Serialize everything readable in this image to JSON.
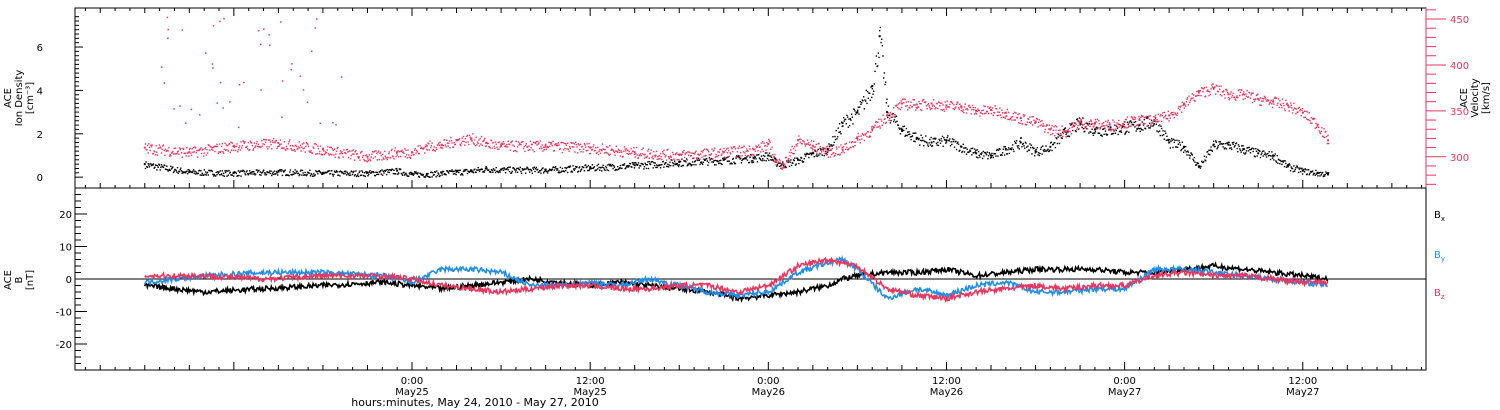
{
  "chart_data": [
    {
      "panel": "top",
      "type": "scatter",
      "left_axis": {
        "label_lines": [
          "ACE",
          "Ion Density",
          "[cm⁻³]"
        ],
        "ylim": [
          -0.5,
          7.8
        ],
        "ticks": [
          0,
          2,
          4,
          6
        ],
        "tick_labels": [
          "0",
          "2",
          "4",
          "6"
        ]
      },
      "right_axis": {
        "label_lines": [
          "ACE",
          "Velocity",
          "[km/s]"
        ],
        "ylim": [
          266,
          462
        ],
        "ticks": [
          300,
          350,
          400,
          450
        ],
        "tick_labels": [
          "300",
          "350",
          "400",
          "450"
        ],
        "color": "#e8365e"
      },
      "series": [
        {
          "axis": "left",
          "color": "#000000",
          "x": [
            -18,
            -15,
            -12,
            -9,
            -6,
            -3,
            -1,
            0,
            1,
            2,
            3,
            4,
            5,
            6,
            9,
            12,
            15,
            18,
            21,
            23,
            24,
            24.5,
            25,
            26,
            27,
            28,
            29,
            30,
            31,
            31.5,
            32,
            33,
            34,
            35,
            36,
            37,
            38,
            39,
            40,
            41,
            42,
            43,
            44,
            45,
            46,
            47,
            48,
            49,
            50,
            51,
            52,
            53,
            54,
            55,
            56,
            57,
            58,
            59,
            60,
            61,
            61.7
          ],
          "values": [
            0.6,
            0.25,
            0.2,
            0.25,
            0.2,
            0.2,
            0.3,
            0.15,
            0.15,
            0.2,
            0.25,
            0.3,
            0.4,
            0.35,
            0.35,
            0.45,
            0.55,
            0.7,
            0.8,
            0.9,
            1.0,
            0.7,
            0.6,
            0.8,
            1.1,
            1.3,
            2.5,
            3.0,
            4.2,
            6.5,
            3.0,
            2.2,
            1.8,
            1.6,
            1.7,
            1.4,
            1.1,
            1.0,
            1.3,
            1.6,
            1.2,
            1.4,
            2.1,
            2.5,
            2.2,
            2.2,
            2.3,
            2.4,
            2.6,
            1.6,
            1.4,
            0.5,
            1.5,
            1.5,
            1.3,
            1.1,
            1.0,
            0.5,
            0.3,
            0.2,
            0.15
          ]
        },
        {
          "axis": "right",
          "color": "#e8365e",
          "x": [
            -18,
            -15,
            -12,
            -9,
            -6,
            -3,
            -1,
            0,
            1,
            2,
            3,
            4,
            5,
            6,
            9,
            12,
            15,
            18,
            21,
            23,
            24,
            24.5,
            25,
            26,
            27,
            28,
            29,
            30,
            31,
            32,
            33,
            34,
            35,
            36,
            37,
            38,
            39,
            40,
            41,
            42,
            43,
            44,
            45,
            46,
            47,
            48,
            49,
            50,
            51,
            52,
            53,
            54,
            55,
            56,
            57,
            58,
            59,
            60,
            61,
            61.7
          ],
          "values": [
            310,
            305,
            312,
            315,
            308,
            300,
            305,
            305,
            312,
            313,
            318,
            320,
            315,
            312,
            312,
            310,
            305,
            302,
            305,
            308,
            314,
            295,
            292,
            318,
            312,
            306,
            308,
            320,
            330,
            345,
            358,
            357,
            358,
            356,
            355,
            350,
            351,
            348,
            342,
            338,
            330,
            328,
            338,
            336,
            335,
            338,
            340,
            340,
            345,
            358,
            370,
            375,
            368,
            368,
            363,
            360,
            356,
            348,
            335,
            318
          ]
        }
      ]
    },
    {
      "panel": "bottom",
      "type": "line",
      "y_axis": {
        "label_lines": [
          "ACE",
          "B",
          "[nT]"
        ],
        "ylim": [
          -28,
          28
        ],
        "ticks": [
          -20,
          -10,
          0,
          10,
          20
        ],
        "tick_labels": [
          "-20",
          "-10",
          "0",
          "10",
          "20"
        ]
      },
      "series": [
        {
          "name_main": "B",
          "name_sub": "x",
          "color": "#000000",
          "x": [
            -18,
            -14,
            -10,
            -6,
            -2,
            0,
            2,
            4,
            6,
            8,
            10,
            12,
            14,
            16,
            18,
            20,
            22,
            24,
            26,
            28,
            29,
            30,
            32,
            34,
            36,
            38,
            40,
            42,
            44,
            46,
            48,
            50,
            52,
            54,
            56,
            58,
            60,
            61.7
          ],
          "values": [
            -2,
            -4,
            -3,
            -2,
            -1,
            -2,
            -3,
            -2,
            -1,
            0,
            -1,
            -2,
            -1,
            -2,
            -3,
            -4,
            -6,
            -5,
            -4,
            -2,
            0,
            1,
            2,
            2,
            3,
            1,
            2,
            3,
            3,
            3,
            2,
            2,
            3,
            4,
            3,
            2,
            1,
            0
          ]
        },
        {
          "name_main": "B",
          "name_sub": "y",
          "color": "#1f8fe8",
          "x": [
            -18,
            -14,
            -10,
            -6,
            -2,
            0,
            2,
            4,
            6,
            8,
            10,
            12,
            14,
            16,
            18,
            20,
            22,
            24,
            26,
            28,
            29,
            30,
            32,
            34,
            36,
            38,
            40,
            42,
            44,
            46,
            48,
            50,
            52,
            54,
            56,
            58,
            60,
            61.7
          ],
          "values": [
            -1,
            1,
            2,
            2,
            1,
            -1,
            3,
            3,
            2,
            -2,
            -2,
            -1,
            -2,
            0,
            -2,
            -4,
            -5,
            -4,
            2,
            5,
            6,
            3,
            -6,
            -3,
            -5,
            -2,
            -1,
            -4,
            -4,
            -3,
            -3,
            3,
            3,
            2,
            1,
            0,
            -1,
            -2
          ]
        },
        {
          "name_main": "B",
          "name_sub": "z",
          "color": "#e8365e",
          "x": [
            -18,
            -14,
            -10,
            -6,
            -2,
            0,
            2,
            4,
            6,
            8,
            10,
            12,
            14,
            16,
            18,
            20,
            22,
            24,
            26,
            28,
            29,
            30,
            32,
            34,
            36,
            38,
            40,
            42,
            44,
            46,
            48,
            50,
            52,
            54,
            56,
            58,
            60,
            61.7
          ],
          "values": [
            1,
            1,
            0,
            1,
            1,
            0,
            -2,
            -3,
            -4,
            -3,
            -2,
            -2,
            -3,
            -3,
            -2,
            -2,
            -4,
            -2,
            4,
            6,
            5,
            4,
            -3,
            -5,
            -6,
            -4,
            -3,
            -2,
            -3,
            -2,
            -2,
            1,
            2,
            1,
            1,
            0,
            -1,
            -1
          ]
        }
      ]
    }
  ],
  "time_axis": {
    "xlim_hours_from_may25": [
      -22.7,
      68.3
    ],
    "major_ticks_hours": [
      0,
      12,
      24,
      36,
      48,
      60
    ],
    "major_tick_labels": [
      {
        "time": "0:00",
        "date": "May25"
      },
      {
        "time": "12:00",
        "date": "May25"
      },
      {
        "time": "0:00",
        "date": "May26"
      },
      {
        "time": "12:00",
        "date": "May26"
      },
      {
        "time": "0:00",
        "date": "May27"
      },
      {
        "time": "12:00",
        "date": "May27"
      }
    ],
    "title": "hours:minutes, May 24, 2010 - May 27, 2010"
  },
  "colors": {
    "density": "#000000",
    "velocity": "#e8365e",
    "bx": "#000000",
    "by": "#1f8fe8",
    "bz": "#e8365e"
  }
}
